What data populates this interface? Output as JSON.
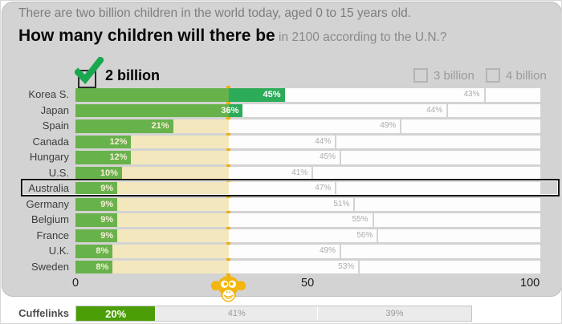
{
  "header": {
    "line1": "There are two billion children in the world today, aged 0 to 15 years old.",
    "question_bold": "How many children will there be",
    "question_rest": " in 2100 according to the U.N.?"
  },
  "legend": {
    "selected_label": "2 billion",
    "unselected": [
      {
        "label": "3 billion"
      },
      {
        "label": "4 billion"
      }
    ]
  },
  "chart_data": {
    "type": "bar",
    "orientation": "horizontal-stacked",
    "title": "How many children will there be in 2100 according to the U.N.?",
    "categories": [
      "Korea S.",
      "Japan",
      "Spain",
      "Canada",
      "Hungary",
      "U.S.",
      "Australia",
      "Germany",
      "Belgium",
      "France",
      "U.K.",
      "Sweden"
    ],
    "series": [
      {
        "name": "2 billion",
        "values": [
          45,
          36,
          21,
          12,
          12,
          10,
          9,
          9,
          9,
          9,
          8,
          8
        ],
        "labels_shown": true
      },
      {
        "name": "3 billion",
        "values": [
          43,
          44,
          49,
          44,
          45,
          41,
          47,
          51,
          55,
          56,
          49,
          53
        ],
        "labels_shown": true
      },
      {
        "name": "4 billion",
        "values": [
          12,
          20,
          30,
          44,
          43,
          49,
          44,
          40,
          36,
          35,
          43,
          39
        ],
        "labels_shown": false
      }
    ],
    "xlim": [
      0,
      100
    ],
    "highlighted_category": "Australia",
    "chance_line_x": 33,
    "selected_answer": "2 billion",
    "legend_position": "top"
  },
  "axis": {
    "ticks": [
      "0",
      "50",
      "100"
    ]
  },
  "footer": {
    "source_label": "Cuffelinks",
    "segments": [
      {
        "name": "2 billion",
        "value": 20,
        "label": "20%"
      },
      {
        "name": "3 billion",
        "value": 41,
        "label": "41%"
      },
      {
        "name": "4 billion",
        "value": 39,
        "label": "39%"
      }
    ]
  },
  "icons": {
    "checkmark": "green-check-icon",
    "monkey": "chimp-face-icon"
  },
  "colors": {
    "panel_bg": "#d3d3d3",
    "bar_green": "#2cab59",
    "bar_green_shaded": "#68b24c",
    "chance_zone_cream": "#f3e7bd",
    "chance_line_gold": "#f0ae00",
    "footer_green": "#4b9e06",
    "check_green": "#18a850"
  }
}
